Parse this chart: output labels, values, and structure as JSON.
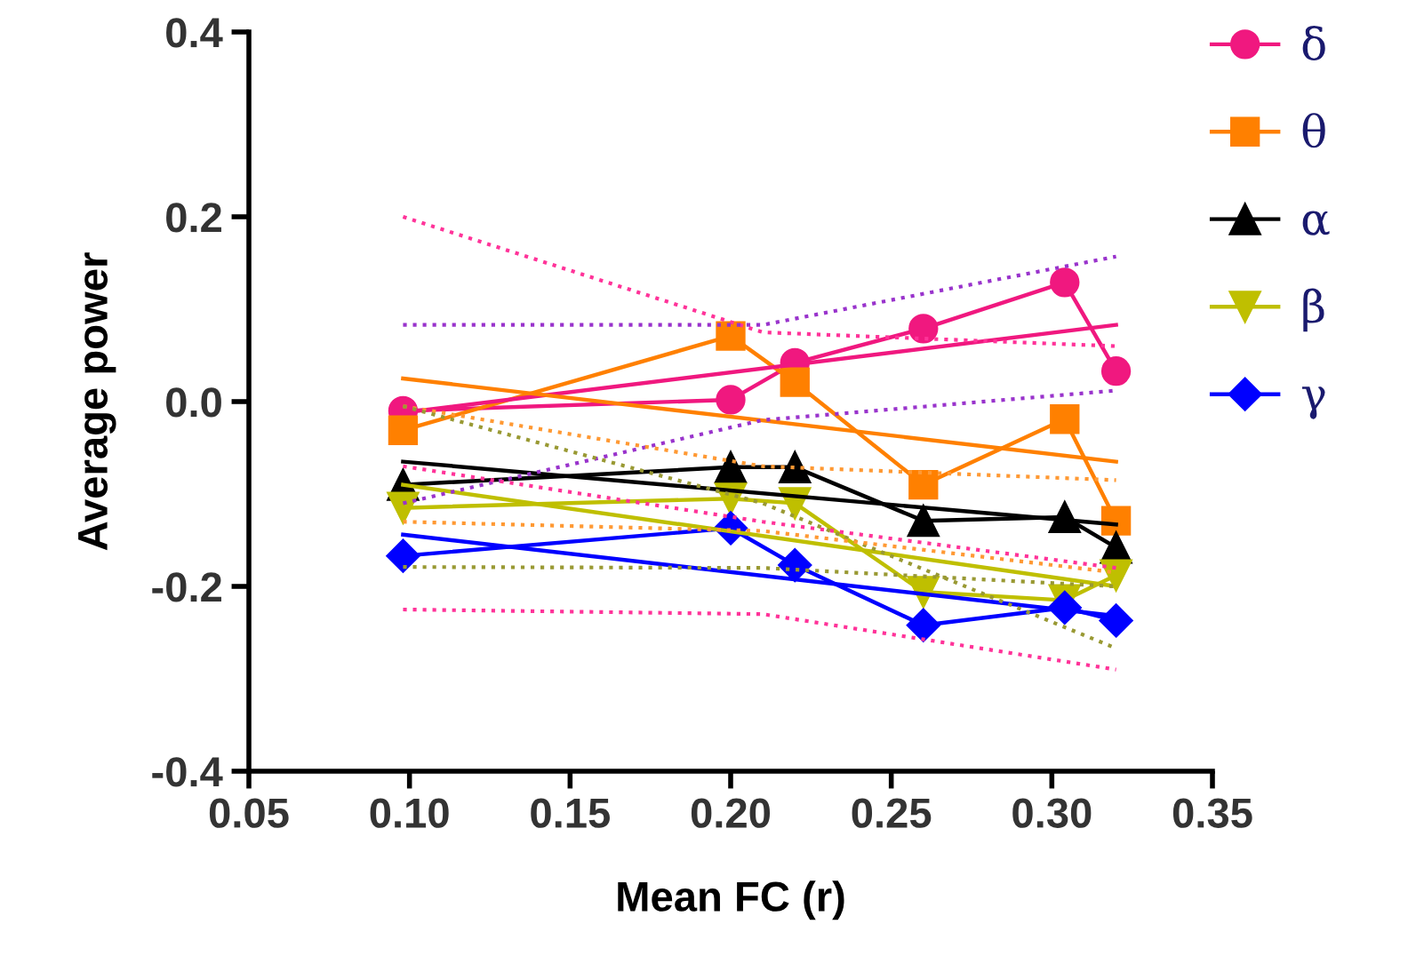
{
  "chart_data": {
    "type": "line",
    "xlabel": "Mean FC (r)",
    "ylabel": "Average power",
    "xlim": [
      0.05,
      0.35
    ],
    "xticks": [
      0.05,
      {
        "value": 0.1,
        "label": "0.10"
      },
      0.15,
      {
        "value": 0.2,
        "label": "0.20"
      },
      0.25,
      {
        "value": 0.3,
        "label": "0.30"
      },
      0.35
    ],
    "ylim": [
      -0.4,
      0.4
    ],
    "yticks": [
      {
        "value": -0.4,
        "label": "-0.4"
      },
      {
        "value": -0.2,
        "label": "-0.2"
      },
      {
        "value": 0,
        "label": "0.0"
      },
      0.2,
      0.4
    ],
    "grid": false,
    "legend": "top right",
    "line_style": "solid",
    "series": [
      {
        "name": "δ",
        "color": "#f0187f",
        "marker": "circle",
        "x": [
          0.098,
          0.2,
          0.22,
          0.26,
          0.304,
          0.32
        ],
        "values": [
          -0.01,
          0.002,
          0.042,
          0.079,
          0.129,
          0.033
        ]
      },
      {
        "name": "θ",
        "color": "#ff8000",
        "marker": "square",
        "x": [
          0.098,
          0.2,
          0.22,
          0.26,
          0.304,
          0.32
        ],
        "values": [
          -0.031,
          0.071,
          0.021,
          -0.09,
          -0.019,
          -0.129
        ]
      },
      {
        "name": "α",
        "color": "#000000",
        "marker": "triangle",
        "x": [
          0.098,
          0.2,
          0.22,
          0.26,
          0.304,
          0.32
        ],
        "values": [
          -0.09,
          -0.071,
          -0.071,
          -0.129,
          -0.125,
          -0.158
        ]
      },
      {
        "name": "β",
        "color": "#bfbf00",
        "marker": "triangle_down",
        "x": [
          0.098,
          0.2,
          0.22,
          0.26,
          0.304,
          0.32
        ],
        "values": [
          -0.115,
          -0.105,
          -0.11,
          -0.206,
          -0.215,
          -0.188
        ]
      },
      {
        "name": "γ",
        "color": "#0000ff",
        "marker": "diamond",
        "x": [
          0.098,
          0.2,
          0.22,
          0.26,
          0.304,
          0.32
        ],
        "values": [
          -0.167,
          -0.137,
          -0.177,
          -0.242,
          -0.223,
          -0.237
        ]
      },
      {
        "color": "#f0187f",
        "marker": "none",
        "x": [
          0.098,
          0.32
        ],
        "values": [
          -0.012,
          0.083
        ]
      },
      {
        "color": "#ff8000",
        "marker": "none",
        "x": [
          0.098,
          0.32
        ],
        "values": [
          0.025,
          -0.065
        ]
      },
      {
        "color": "#000000",
        "marker": "none",
        "x": [
          0.098,
          0.32
        ],
        "values": [
          -0.065,
          -0.133
        ]
      },
      {
        "color": "#bfbf00",
        "marker": "none",
        "x": [
          0.098,
          0.32
        ],
        "values": [
          -0.09,
          -0.2
        ]
      },
      {
        "color": "#0000ff",
        "marker": "none",
        "x": [
          0.098,
          0.32
        ],
        "values": [
          -0.144,
          -0.232
        ]
      },
      {
        "color": "#ff3399",
        "marker": "none",
        "line_style": "dotted",
        "x": [
          0.098,
          0.21,
          0.32
        ],
        "values": [
          0.2,
          0.075,
          0.06
        ]
      },
      {
        "color": "#9933cc",
        "marker": "none",
        "line_style": "dotted",
        "x": [
          0.098,
          0.21,
          0.32
        ],
        "values": [
          0.083,
          0.083,
          0.157
        ]
      },
      {
        "color": "#9933cc",
        "marker": "none",
        "line_style": "dotted",
        "x": [
          0.098,
          0.21,
          0.32
        ],
        "values": [
          -0.11,
          -0.02,
          0.012
        ]
      },
      {
        "color": "#ff9933",
        "marker": "none",
        "line_style": "dotted",
        "x": [
          0.098,
          0.21,
          0.32
        ],
        "values": [
          -0.005,
          -0.07,
          -0.085
        ]
      },
      {
        "color": "#999933",
        "marker": "none",
        "line_style": "dotted",
        "x": [
          0.098,
          0.21,
          0.32
        ],
        "values": [
          -0.005,
          -0.11,
          -0.267
        ]
      },
      {
        "color": "#ff9933",
        "marker": "none",
        "line_style": "dotted",
        "x": [
          0.098,
          0.21,
          0.32
        ],
        "values": [
          -0.13,
          -0.14,
          -0.185
        ]
      },
      {
        "color": "#999933",
        "marker": "none",
        "line_style": "dotted",
        "x": [
          0.098,
          0.21,
          0.32
        ],
        "values": [
          -0.179,
          -0.18,
          -0.2
        ]
      },
      {
        "color": "#ff3399",
        "marker": "none",
        "line_style": "dotted",
        "x": [
          0.098,
          0.21,
          0.32
        ],
        "values": [
          -0.07,
          -0.13,
          -0.18
        ]
      },
      {
        "color": "#ff3399",
        "marker": "none",
        "line_style": "dotted",
        "x": [
          0.098,
          0.21,
          0.32
        ],
        "values": [
          -0.225,
          -0.23,
          -0.29
        ]
      }
    ]
  }
}
